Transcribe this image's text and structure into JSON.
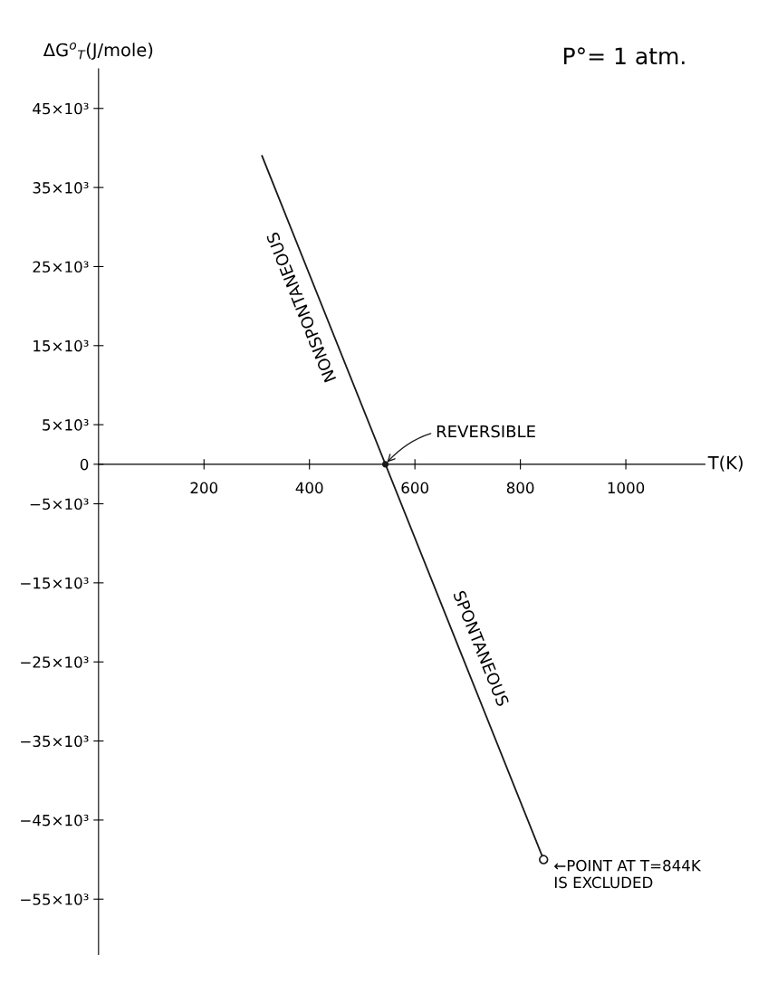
{
  "chart_data": {
    "type": "line",
    "ylabel": "ΔG$^{o}$$_{T}$(J/mole)",
    "xlabel": "T(K)",
    "x": [
      310,
      844
    ],
    "series": [
      {
        "color": "#1a1a1a",
        "values": [
          39000,
          -50000
        ]
      }
    ],
    "xlim": [
      0,
      1150
    ],
    "ylim": [
      -62000,
      50000
    ],
    "xticks": [
      200,
      400,
      600,
      800,
      1000
    ],
    "yticks": [
      {
        "value": 45000,
        "label": "45×10³"
      },
      {
        "value": 35000,
        "label": "35×10³"
      },
      {
        "value": 25000,
        "label": "25×10³"
      },
      {
        "value": 15000,
        "label": "15×10³"
      },
      {
        "value": 5000,
        "label": "5×10³"
      },
      {
        "value": 0,
        "label": "0"
      },
      {
        "value": -5000,
        "label": "−5×10³"
      },
      {
        "value": -15000,
        "label": "−15×10³"
      },
      {
        "value": -25000,
        "label": "−25×10³"
      },
      {
        "value": -35000,
        "label": "−35×10³"
      },
      {
        "value": -45000,
        "label": "−45×10³"
      },
      {
        "value": -55000,
        "label": "−55×10³"
      }
    ],
    "grid": false,
    "annotations": [
      "P°= 1 atm.",
      {
        "text": "NONSPONTANEOUS",
        "x": 420,
        "y": 19000
      },
      {
        "text": "SPONTANEOUS",
        "x": 690,
        "y": -25000
      },
      {
        "text": "REVERSIBLE",
        "x": 544,
        "y": 0
      },
      {
        "text": "←POINT AT T=844K\nIS EXCLUDED",
        "x": 844,
        "y": -50000
      }
    ]
  }
}
